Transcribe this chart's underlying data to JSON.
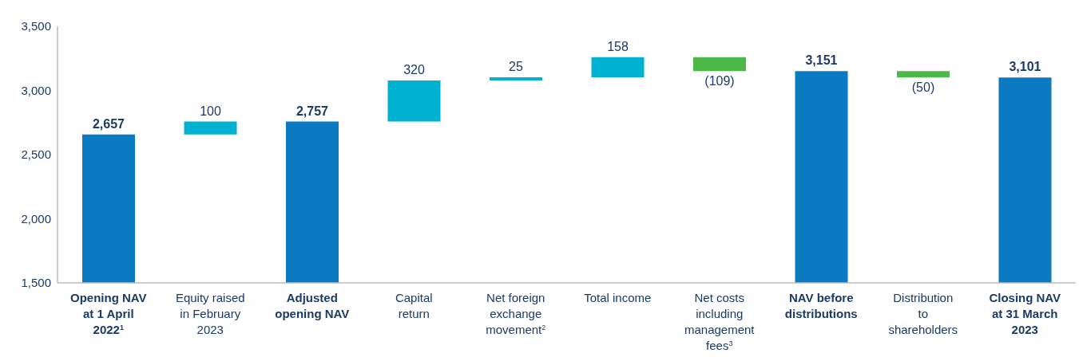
{
  "chart_data": {
    "type": "bar",
    "categories": [
      "Opening NAV at 1 April 2022$^{1}$",
      "Equity raised in February 2023",
      "Adjusted opening NAV",
      "Capital return",
      "Net foreign exchange movement$^{2}$",
      "Total income",
      "Net costs including management fees$^{3}$",
      "NAV before distributions",
      "Distribution to shareholders",
      "Closing NAV at 31 March 2023"
    ],
    "values": [
      2657,
      100,
      2757,
      320,
      25,
      158,
      -109,
      3151,
      -50,
      3101
    ],
    "base": [
      null,
      2657,
      null,
      2757,
      3077,
      3102,
      3260,
      null,
      3151,
      null
    ],
    "colors": [
      "#0a7bc2",
      "#00b2cf",
      "#0a7bc2",
      "#00b2cf",
      "#00b2cf",
      "#00b2cf",
      "#4cb84a",
      "#0a7bc2",
      "#4cb84a",
      "#0a7bc2"
    ],
    "value_labels": [
      "2,657",
      "100",
      "2,757",
      "320",
      "25",
      "158",
      "(109)",
      "3,151",
      "(50)",
      "3,101"
    ],
    "ylim": [
      1500,
      3500
    ],
    "yticks": [
      {
        "value": 1500,
        "label": "1,500"
      },
      {
        "value": 2000,
        "label": "2,000"
      },
      {
        "value": 2500,
        "label": "2,500"
      },
      {
        "value": 3000,
        "label": "3,000"
      },
      {
        "value": 3500,
        "label": "3,500"
      }
    ],
    "grid": false,
    "legend": false
  }
}
